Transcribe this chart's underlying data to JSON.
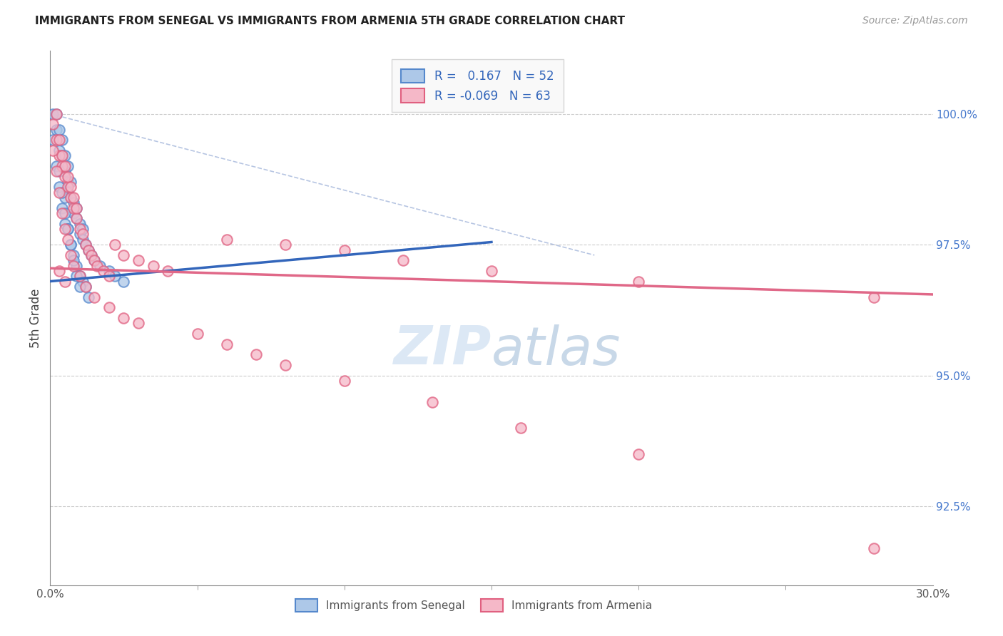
{
  "title": "IMMIGRANTS FROM SENEGAL VS IMMIGRANTS FROM ARMENIA 5TH GRADE CORRELATION CHART",
  "source_text": "Source: ZipAtlas.com",
  "ylabel": "5th Grade",
  "x_min": 0.0,
  "x_max": 0.3,
  "y_min": 91.0,
  "y_max": 101.2,
  "y_ticks_right": [
    92.5,
    95.0,
    97.5,
    100.0
  ],
  "y_tick_labels_right": [
    "92.5%",
    "95.0%",
    "97.5%",
    "100.0%"
  ],
  "senegal_R": "0.167",
  "senegal_N": "52",
  "armenia_R": "-0.069",
  "armenia_N": "63",
  "senegal_color": "#adc8e8",
  "armenia_color": "#f5b8c8",
  "senegal_edge_color": "#5588cc",
  "armenia_edge_color": "#e06080",
  "senegal_line_color": "#3366bb",
  "armenia_line_color": "#e06888",
  "ref_line_color": "#aabbdd",
  "grid_color": "#cccccc",
  "watermark_color": "#dce8f5",
  "senegal_x": [
    0.001,
    0.002,
    0.002,
    0.003,
    0.003,
    0.004,
    0.004,
    0.005,
    0.005,
    0.006,
    0.006,
    0.006,
    0.007,
    0.007,
    0.008,
    0.008,
    0.009,
    0.009,
    0.01,
    0.01,
    0.011,
    0.011,
    0.012,
    0.013,
    0.014,
    0.015,
    0.017,
    0.02,
    0.022,
    0.025,
    0.001,
    0.002,
    0.003,
    0.004,
    0.005,
    0.005,
    0.006,
    0.007,
    0.008,
    0.009,
    0.01,
    0.011,
    0.012,
    0.013,
    0.003,
    0.004,
    0.005,
    0.006,
    0.007,
    0.008,
    0.009,
    0.01
  ],
  "senegal_y": [
    100.0,
    99.7,
    100.0,
    99.3,
    99.7,
    99.2,
    99.5,
    98.9,
    99.2,
    98.7,
    98.5,
    99.0,
    98.4,
    98.7,
    98.3,
    98.1,
    98.0,
    98.2,
    97.9,
    97.7,
    97.6,
    97.8,
    97.5,
    97.4,
    97.3,
    97.2,
    97.1,
    97.0,
    96.9,
    96.8,
    99.5,
    99.0,
    98.6,
    98.2,
    97.9,
    98.4,
    97.8,
    97.5,
    97.3,
    97.1,
    96.9,
    96.8,
    96.7,
    96.5,
    98.9,
    98.5,
    98.1,
    97.8,
    97.5,
    97.2,
    96.9,
    96.7
  ],
  "armenia_x": [
    0.001,
    0.002,
    0.002,
    0.003,
    0.003,
    0.004,
    0.004,
    0.005,
    0.005,
    0.006,
    0.006,
    0.007,
    0.007,
    0.008,
    0.008,
    0.009,
    0.009,
    0.01,
    0.011,
    0.012,
    0.013,
    0.014,
    0.015,
    0.016,
    0.018,
    0.02,
    0.022,
    0.025,
    0.03,
    0.035,
    0.04,
    0.06,
    0.08,
    0.1,
    0.12,
    0.15,
    0.2,
    0.28,
    0.001,
    0.002,
    0.003,
    0.004,
    0.005,
    0.006,
    0.007,
    0.008,
    0.01,
    0.012,
    0.015,
    0.02,
    0.025,
    0.03,
    0.05,
    0.06,
    0.07,
    0.08,
    0.1,
    0.13,
    0.16,
    0.2,
    0.003,
    0.005,
    0.28
  ],
  "armenia_y": [
    99.8,
    99.5,
    100.0,
    99.2,
    99.5,
    99.0,
    99.2,
    98.8,
    99.0,
    98.6,
    98.8,
    98.4,
    98.6,
    98.2,
    98.4,
    98.0,
    98.2,
    97.8,
    97.7,
    97.5,
    97.4,
    97.3,
    97.2,
    97.1,
    97.0,
    96.9,
    97.5,
    97.3,
    97.2,
    97.1,
    97.0,
    97.6,
    97.5,
    97.4,
    97.2,
    97.0,
    96.8,
    96.5,
    99.3,
    98.9,
    98.5,
    98.1,
    97.8,
    97.6,
    97.3,
    97.1,
    96.9,
    96.7,
    96.5,
    96.3,
    96.1,
    96.0,
    95.8,
    95.6,
    95.4,
    95.2,
    94.9,
    94.5,
    94.0,
    93.5,
    97.0,
    96.8,
    91.7
  ],
  "senegal_trend_x": [
    0.0,
    0.15
  ],
  "senegal_trend_y": [
    96.8,
    97.55
  ],
  "armenia_trend_x": [
    0.0,
    0.3
  ],
  "armenia_trend_y": [
    97.05,
    96.55
  ],
  "ref_line_x": [
    0.0,
    0.185
  ],
  "ref_line_y": [
    100.0,
    97.3
  ]
}
